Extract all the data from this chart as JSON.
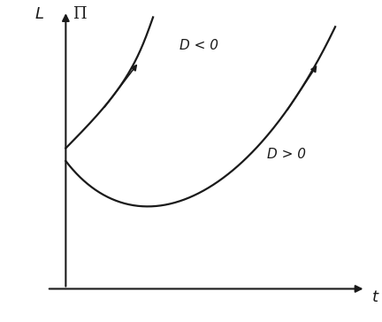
{
  "title": "",
  "ylabel": "Π",
  "xlabel": "t",
  "ylabel_left": "L",
  "label_D_neg": "D < 0",
  "label_D_pos": "D > 0",
  "bg_color": "#ffffff",
  "line_color": "#1a1a1a",
  "figsize": [
    4.32,
    3.64
  ],
  "dpi": 100
}
